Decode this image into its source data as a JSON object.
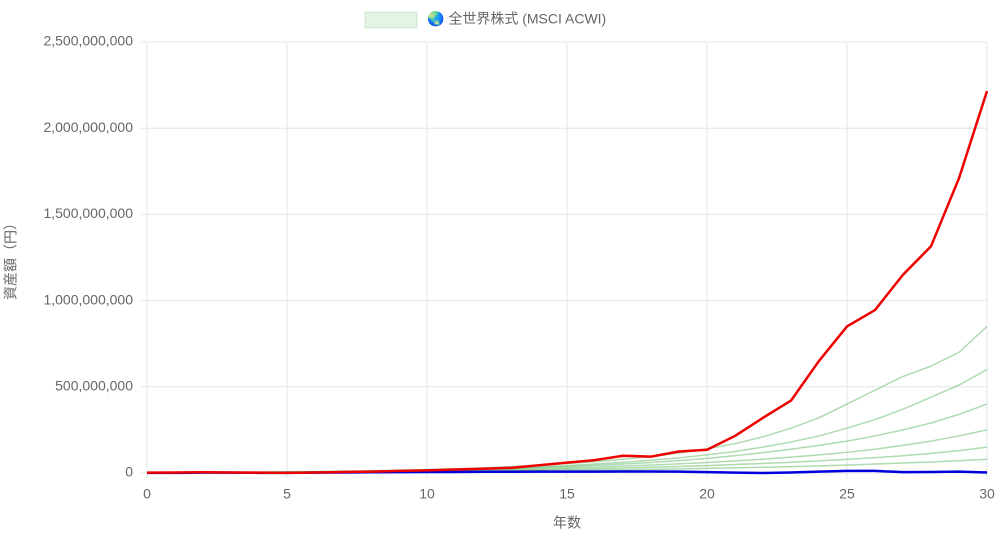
{
  "chart_data": {
    "type": "line",
    "x_label": "年数",
    "y_label": "資産額（円）",
    "x": [
      0,
      1,
      2,
      3,
      4,
      5,
      6,
      7,
      8,
      9,
      10,
      11,
      12,
      13,
      14,
      15,
      16,
      17,
      18,
      19,
      20,
      21,
      22,
      23,
      24,
      25,
      26,
      27,
      28,
      29,
      30
    ],
    "xlim": [
      0,
      30
    ],
    "xticks": [
      0,
      5,
      10,
      15,
      20,
      25,
      30
    ],
    "ylim": [
      0,
      2500000000
    ],
    "yticks": [
      0,
      {
        "value": 500000000,
        "label": "500,000,000"
      },
      {
        "value": 1000000000,
        "label": "1,000,000,000"
      },
      {
        "value": 1500000000,
        "label": "1,500,000,000"
      },
      {
        "value": 2000000000,
        "label": "2,000,000,000"
      },
      {
        "value": 2500000000,
        "label": "2,500,000,000"
      }
    ],
    "grid": true,
    "legend": "top",
    "series": [
      {
        "name": "🌏 全世界株式 (MSCI ACWI)",
        "color": "#4caf50",
        "values": [
          1000000,
          2000000,
          3000000,
          3000000,
          4000000,
          5000000,
          6000000,
          8000000,
          10000000,
          12000000,
          15000000,
          18000000,
          22000000,
          26000000,
          31000000,
          37000000,
          44000000,
          52000000,
          61000000,
          72000000,
          85000000,
          100000000,
          118000000,
          138000000,
          160000000,
          185000000,
          215000000,
          250000000,
          290000000,
          340000000,
          400000000
        ]
      },
      {
        "color": "#4caf50",
        "values": [
          1000000,
          2000000,
          3000000,
          4000000,
          5000000,
          6000000,
          8000000,
          10000000,
          13000000,
          16000000,
          20000000,
          25000000,
          30000000,
          37000000,
          45000000,
          55000000,
          66000000,
          80000000,
          95000000,
          115000000,
          140000000,
          170000000,
          210000000,
          260000000,
          320000000,
          400000000,
          480000000,
          560000000,
          620000000,
          700000000,
          850000000
        ]
      },
      {
        "color": "#4caf50",
        "values": [
          1000000,
          2000000,
          3000000,
          4000000,
          5000000,
          6000000,
          7000000,
          9000000,
          11000000,
          14000000,
          17000000,
          21000000,
          25000000,
          30000000,
          36000000,
          43000000,
          52000000,
          62000000,
          74000000,
          88000000,
          105000000,
          125000000,
          150000000,
          180000000,
          215000000,
          260000000,
          310000000,
          370000000,
          440000000,
          510000000,
          600000000
        ]
      },
      {
        "color": "#4caf50",
        "values": [
          1000000,
          2000000,
          2000000,
          3000000,
          4000000,
          5000000,
          6000000,
          7000000,
          9000000,
          11000000,
          13000000,
          15000000,
          18000000,
          21000000,
          25000000,
          29000000,
          34000000,
          40000000,
          46000000,
          53000000,
          61000000,
          70000000,
          80000000,
          92000000,
          105000000,
          120000000,
          138000000,
          160000000,
          185000000,
          215000000,
          250000000
        ]
      },
      {
        "color": "#4caf50",
        "values": [
          1000000,
          1000000,
          2000000,
          3000000,
          3000000,
          4000000,
          5000000,
          6000000,
          7000000,
          8000000,
          10000000,
          12000000,
          14000000,
          16000000,
          19000000,
          22000000,
          25000000,
          29000000,
          33000000,
          38000000,
          43000000,
          49000000,
          55000000,
          62000000,
          70000000,
          79000000,
          89000000,
          100000000,
          114000000,
          130000000,
          150000000
        ]
      },
      {
        "color": "#4caf50",
        "values": [
          1000000,
          1000000,
          2000000,
          2000000,
          3000000,
          3000000,
          4000000,
          5000000,
          6000000,
          7000000,
          8000000,
          9000000,
          10000000,
          12000000,
          13000000,
          15000000,
          17000000,
          19000000,
          21000000,
          24000000,
          27000000,
          30000000,
          33000000,
          37000000,
          41000000,
          46000000,
          52000000,
          58000000,
          64000000,
          71000000,
          80000000
        ]
      },
      {
        "color": "#0000dd",
        "values": [
          1000000,
          1000000,
          2000000,
          2000000,
          1000000,
          1000000,
          2000000,
          3000000,
          4000000,
          5000000,
          6000000,
          6000000,
          7000000,
          7000000,
          8000000,
          8000000,
          8000000,
          9000000,
          9000000,
          8000000,
          5000000,
          2000000,
          0,
          3000000,
          8000000,
          12000000,
          12000000,
          5000000,
          6000000,
          8000000,
          3000000
        ]
      },
      {
        "color": "#ee0000",
        "values": [
          2000000,
          3000000,
          4000000,
          3000000,
          2000000,
          1000000,
          3000000,
          6000000,
          8000000,
          12000000,
          15000000,
          20000000,
          25000000,
          30000000,
          45000000,
          60000000,
          75000000,
          100000000,
          95000000,
          125000000,
          135000000,
          215000000,
          320000000,
          420000000,
          650000000,
          850000000,
          945000000,
          1150000000,
          1315000000,
          1710000000,
          2215000000
        ]
      }
    ]
  }
}
